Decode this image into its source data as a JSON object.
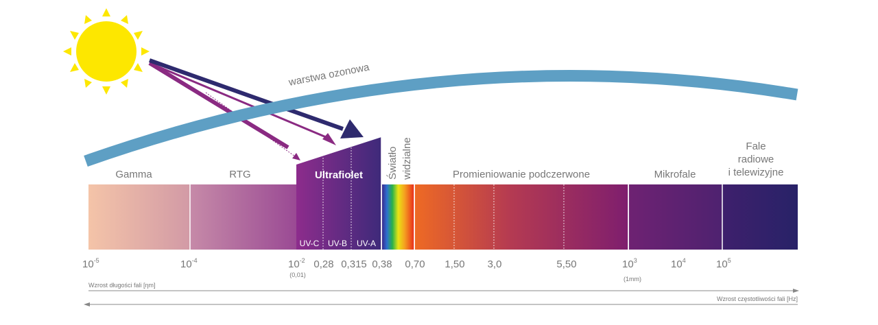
{
  "ozone_label": "warstwa ozonowa",
  "regions": {
    "gamma": "Gamma",
    "rtg": "RTG",
    "uv": "Ultrafiolet",
    "visible_line1": "Światło",
    "visible_line2": "widzialne",
    "infrared": "Promieniowanie podczerwone",
    "micro": "Mikrofale",
    "radio_line1": "Fale",
    "radio_line2": "radiowe",
    "radio_line3": "i telewizyjne"
  },
  "uv_bands": [
    "UV-C",
    "UV-B",
    "UV-A"
  ],
  "ticks": {
    "t1": {
      "base": "10",
      "exp": "-5"
    },
    "t2": {
      "base": "10",
      "exp": "-4"
    },
    "t3": {
      "base": "10",
      "exp": "-2",
      "note": "(0,01)"
    },
    "v028": "0,28",
    "v0315": "0,315",
    "v038": "0,38",
    "v070": "0,70",
    "v150": "1,50",
    "v30": "3,0",
    "v550": "5,50",
    "t4": {
      "base": "10",
      "exp": "3",
      "note": "(1mm)"
    },
    "t5": {
      "base": "10",
      "exp": "4"
    },
    "t6": {
      "base": "10",
      "exp": "5"
    }
  },
  "axes": {
    "wavelength": "Wzrost długości fali [ηm]",
    "frequency": "Wzrost częstotliwości fali [Hz]"
  },
  "colors": {
    "sun": "#fde700",
    "ozone": "#5e9fc4",
    "arrow_dark": "#2e2a6e",
    "arrow_purple": "#8a2a82"
  }
}
